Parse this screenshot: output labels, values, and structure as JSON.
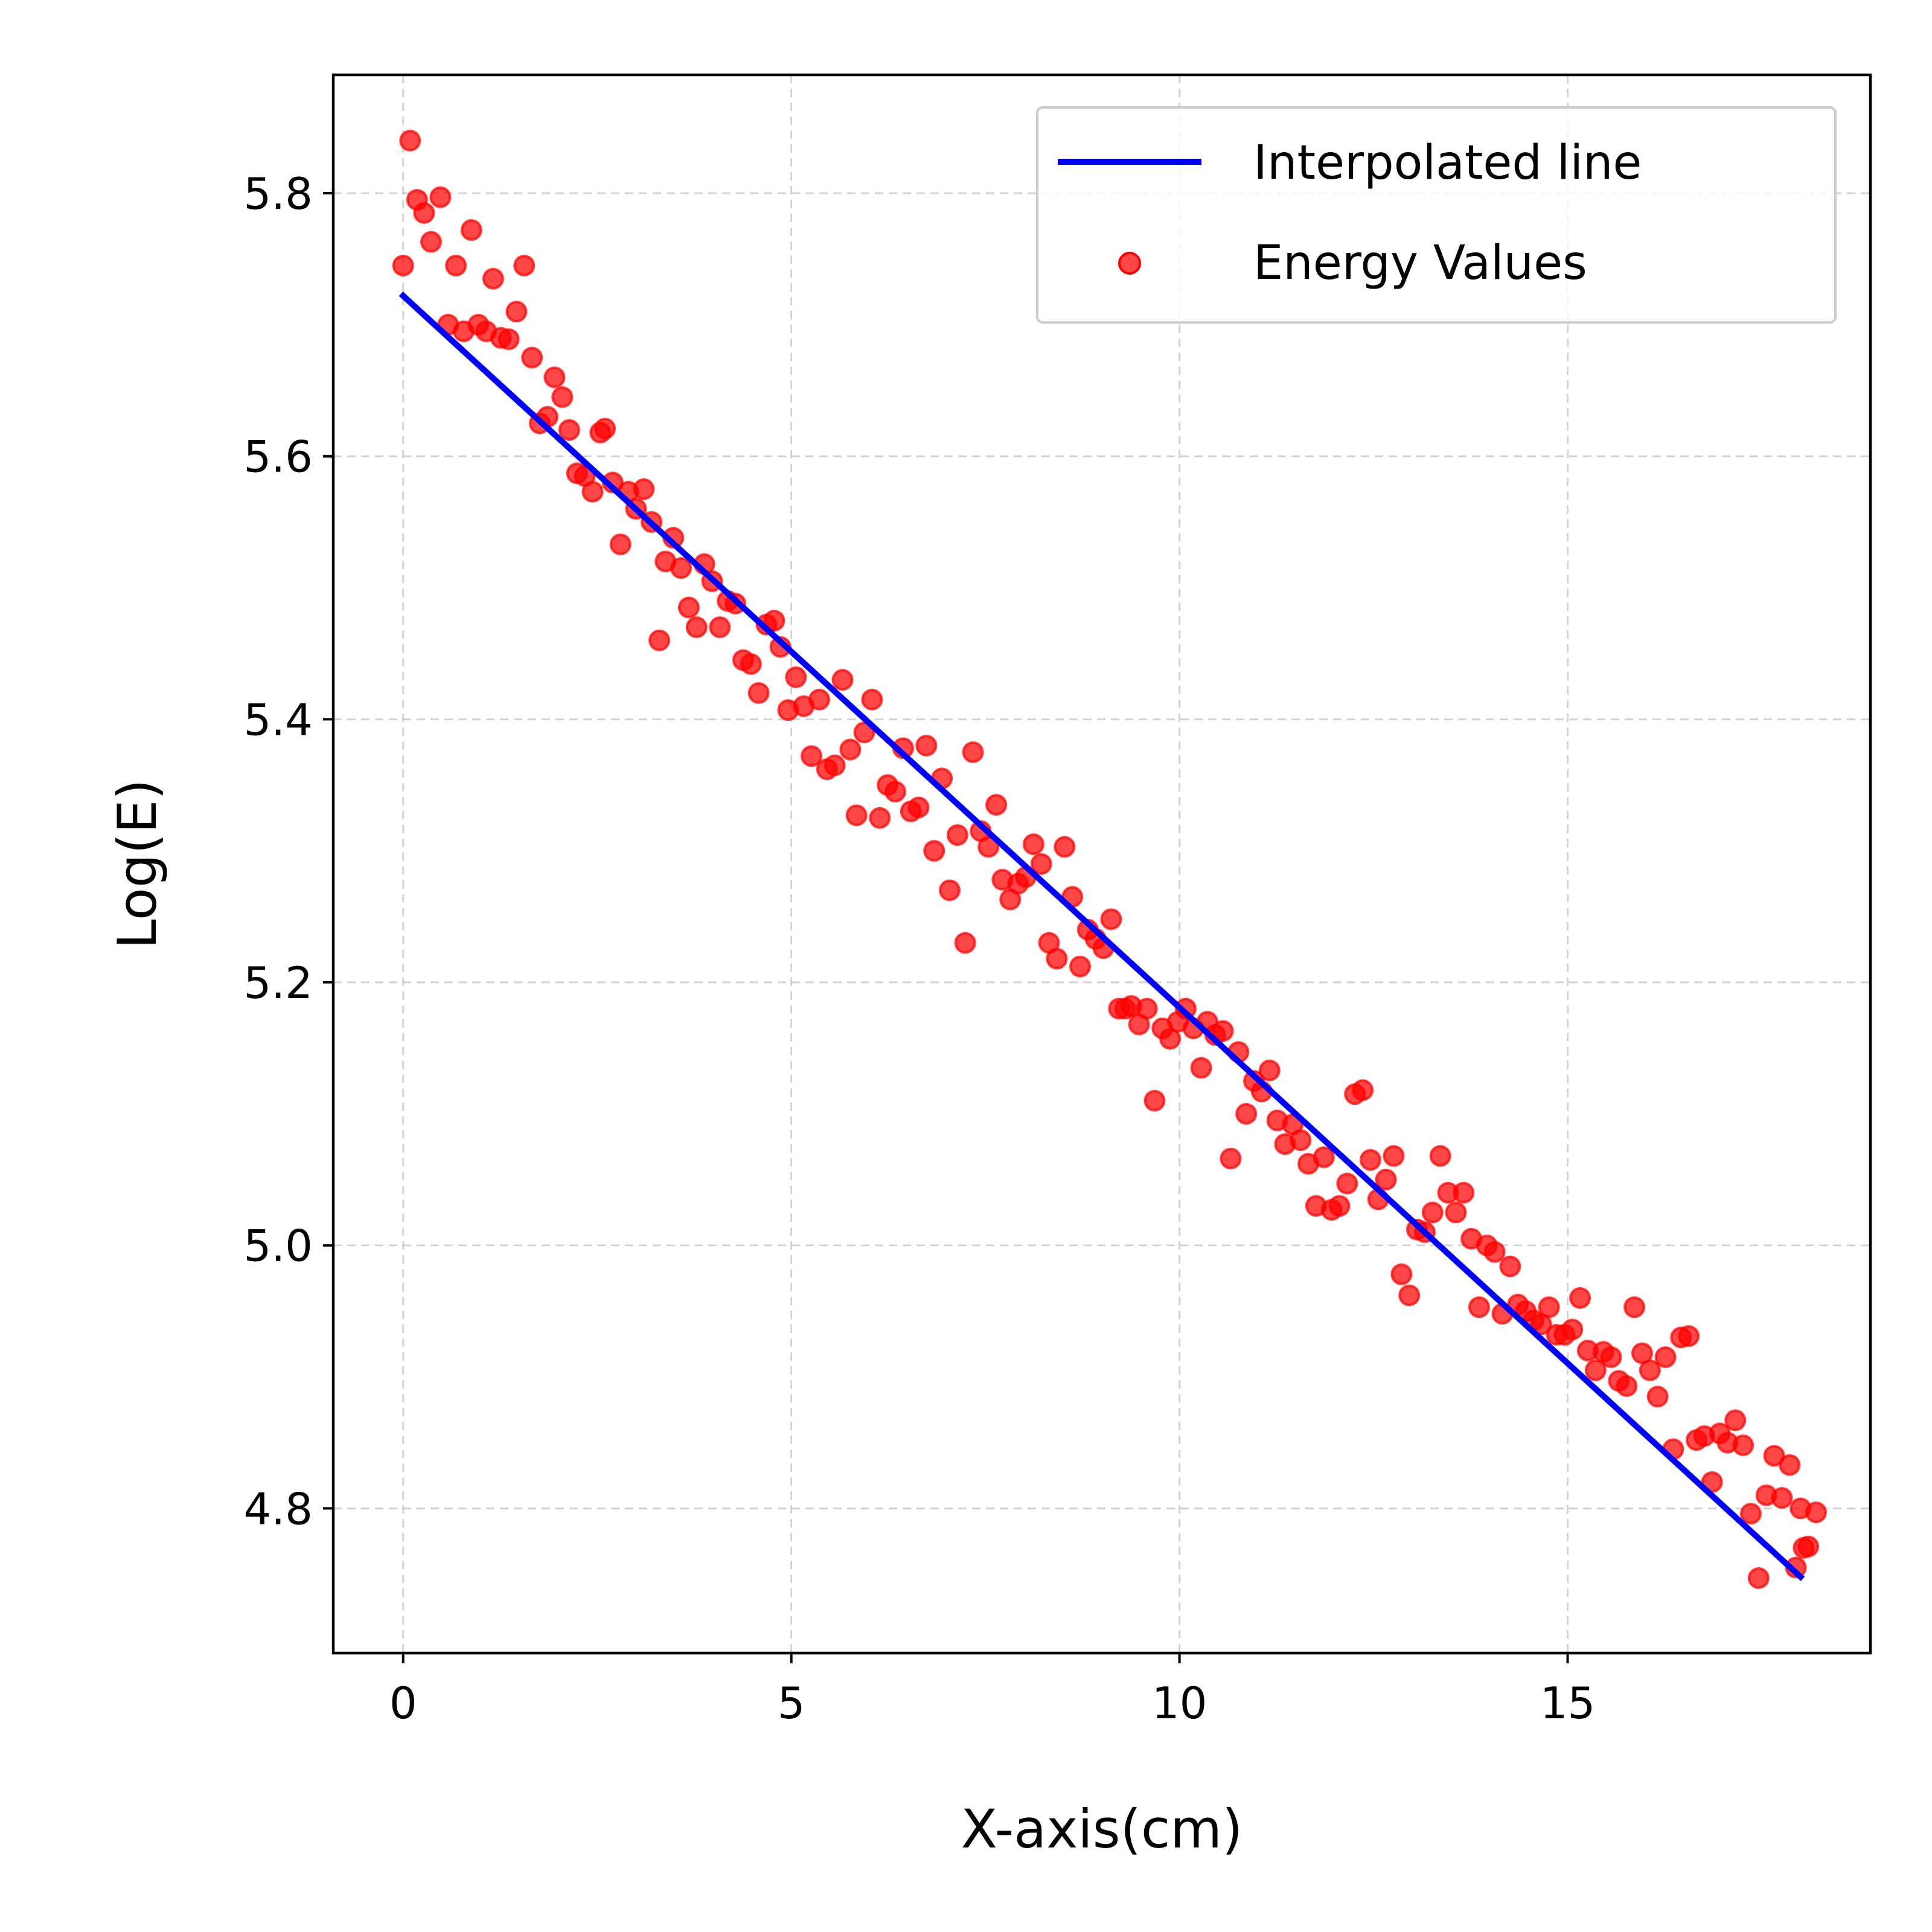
{
  "chart_data": {
    "type": "scatter+line",
    "title": "",
    "xlabel": "X-axis(cm)",
    "ylabel": "Log(E)",
    "xlim": [
      -0.9,
      18.9
    ],
    "ylim": [
      4.69,
      5.89
    ],
    "xticks": [
      0,
      5,
      10,
      15
    ],
    "yticks": [
      4.8,
      5.0,
      5.2,
      5.4,
      5.6,
      5.8
    ],
    "xtick_labels": [
      "0",
      "5",
      "10",
      "15"
    ],
    "ytick_labels": [
      "4.8",
      "5.0",
      "5.2",
      "5.4",
      "5.6",
      "5.8"
    ],
    "grid": true,
    "legend_position": "top-right",
    "colors": {
      "line": "#0000ff",
      "points": "#ff0000",
      "axes": "#000000"
    },
    "series": [
      {
        "name": "Interpolated line",
        "kind": "line",
        "x": [
          0,
          18
        ],
        "y": [
          5.722,
          4.748
        ]
      },
      {
        "name": "Energy Values",
        "kind": "scatter",
        "points": [
          [
            0.0,
            5.745
          ],
          [
            0.09,
            5.84
          ],
          [
            0.18,
            5.795
          ],
          [
            0.27,
            5.785
          ],
          [
            0.36,
            5.763
          ],
          [
            0.48,
            5.797
          ],
          [
            0.58,
            5.7
          ],
          [
            0.68,
            5.745
          ],
          [
            0.78,
            5.695
          ],
          [
            0.88,
            5.772
          ],
          [
            0.97,
            5.7
          ],
          [
            1.07,
            5.695
          ],
          [
            1.16,
            5.735
          ],
          [
            1.26,
            5.69
          ],
          [
            1.36,
            5.689
          ],
          [
            1.46,
            5.71
          ],
          [
            1.56,
            5.745
          ],
          [
            1.66,
            5.675
          ],
          [
            1.76,
            5.625
          ],
          [
            1.86,
            5.63
          ],
          [
            1.95,
            5.66
          ],
          [
            2.05,
            5.645
          ],
          [
            2.14,
            5.62
          ],
          [
            2.24,
            5.587
          ],
          [
            2.34,
            5.585
          ],
          [
            2.44,
            5.573
          ],
          [
            2.54,
            5.618
          ],
          [
            2.6,
            5.621
          ],
          [
            2.7,
            5.58
          ],
          [
            2.8,
            5.533
          ],
          [
            2.9,
            5.573
          ],
          [
            3.0,
            5.56
          ],
          [
            3.1,
            5.575
          ],
          [
            3.2,
            5.55
          ],
          [
            3.3,
            5.46
          ],
          [
            3.38,
            5.52
          ],
          [
            3.48,
            5.538
          ],
          [
            3.58,
            5.515
          ],
          [
            3.68,
            5.485
          ],
          [
            3.78,
            5.47
          ],
          [
            3.88,
            5.518
          ],
          [
            3.98,
            5.505
          ],
          [
            4.08,
            5.47
          ],
          [
            4.18,
            5.49
          ],
          [
            4.28,
            5.488
          ],
          [
            4.38,
            5.445
          ],
          [
            4.48,
            5.442
          ],
          [
            4.58,
            5.42
          ],
          [
            4.68,
            5.472
          ],
          [
            4.78,
            5.475
          ],
          [
            4.86,
            5.455
          ],
          [
            4.96,
            5.407
          ],
          [
            5.06,
            5.432
          ],
          [
            5.16,
            5.41
          ],
          [
            5.26,
            5.372
          ],
          [
            5.36,
            5.415
          ],
          [
            5.46,
            5.362
          ],
          [
            5.56,
            5.365
          ],
          [
            5.66,
            5.43
          ],
          [
            5.76,
            5.377
          ],
          [
            5.84,
            5.327
          ],
          [
            5.94,
            5.39
          ],
          [
            6.04,
            5.415
          ],
          [
            6.14,
            5.325
          ],
          [
            6.24,
            5.35
          ],
          [
            6.34,
            5.345
          ],
          [
            6.44,
            5.378
          ],
          [
            6.54,
            5.33
          ],
          [
            6.64,
            5.333
          ],
          [
            6.74,
            5.38
          ],
          [
            6.84,
            5.3
          ],
          [
            6.94,
            5.355
          ],
          [
            7.04,
            5.27
          ],
          [
            7.14,
            5.312
          ],
          [
            7.24,
            5.23
          ],
          [
            7.34,
            5.375
          ],
          [
            7.44,
            5.315
          ],
          [
            7.54,
            5.303
          ],
          [
            7.64,
            5.335
          ],
          [
            7.72,
            5.278
          ],
          [
            7.82,
            5.263
          ],
          [
            7.92,
            5.275
          ],
          [
            8.02,
            5.28
          ],
          [
            8.12,
            5.305
          ],
          [
            8.22,
            5.29
          ],
          [
            8.32,
            5.23
          ],
          [
            8.42,
            5.218
          ],
          [
            8.52,
            5.303
          ],
          [
            8.62,
            5.265
          ],
          [
            8.72,
            5.212
          ],
          [
            8.82,
            5.24
          ],
          [
            8.92,
            5.233
          ],
          [
            9.02,
            5.226
          ],
          [
            9.12,
            5.248
          ],
          [
            9.22,
            5.18
          ],
          [
            9.3,
            5.18
          ],
          [
            9.38,
            5.182
          ],
          [
            9.48,
            5.168
          ],
          [
            9.58,
            5.18
          ],
          [
            9.68,
            5.11
          ],
          [
            9.78,
            5.165
          ],
          [
            9.88,
            5.157
          ],
          [
            9.98,
            5.17
          ],
          [
            10.08,
            5.18
          ],
          [
            10.18,
            5.165
          ],
          [
            10.28,
            5.135
          ],
          [
            10.36,
            5.17
          ],
          [
            10.46,
            5.16
          ],
          [
            10.56,
            5.163
          ],
          [
            10.66,
            5.066
          ],
          [
            10.76,
            5.147
          ],
          [
            10.86,
            5.1
          ],
          [
            10.96,
            5.125
          ],
          [
            11.06,
            5.117
          ],
          [
            11.16,
            5.133
          ],
          [
            11.26,
            5.095
          ],
          [
            11.36,
            5.077
          ],
          [
            11.46,
            5.092
          ],
          [
            11.56,
            5.08
          ],
          [
            11.66,
            5.062
          ],
          [
            11.76,
            5.03
          ],
          [
            11.86,
            5.067
          ],
          [
            11.96,
            5.027
          ],
          [
            12.06,
            5.03
          ],
          [
            12.16,
            5.047
          ],
          [
            12.26,
            5.115
          ],
          [
            12.36,
            5.118
          ],
          [
            12.46,
            5.065
          ],
          [
            12.56,
            5.035
          ],
          [
            12.66,
            5.05
          ],
          [
            12.76,
            5.068
          ],
          [
            12.86,
            4.978
          ],
          [
            12.96,
            4.962
          ],
          [
            13.06,
            5.012
          ],
          [
            13.16,
            5.01
          ],
          [
            13.26,
            5.025
          ],
          [
            13.36,
            5.068
          ],
          [
            13.46,
            5.04
          ],
          [
            13.56,
            5.025
          ],
          [
            13.66,
            5.04
          ],
          [
            13.76,
            5.005
          ],
          [
            13.86,
            4.953
          ],
          [
            13.96,
            5.0
          ],
          [
            14.06,
            4.995
          ],
          [
            14.16,
            4.948
          ],
          [
            14.26,
            4.984
          ],
          [
            14.36,
            4.955
          ],
          [
            14.46,
            4.95
          ],
          [
            14.56,
            4.943
          ],
          [
            14.66,
            4.94
          ],
          [
            14.76,
            4.953
          ],
          [
            14.86,
            4.932
          ],
          [
            14.96,
            4.932
          ],
          [
            15.06,
            4.936
          ],
          [
            15.16,
            4.96
          ],
          [
            15.26,
            4.92
          ],
          [
            15.36,
            4.905
          ],
          [
            15.46,
            4.919
          ],
          [
            15.56,
            4.915
          ],
          [
            15.66,
            4.897
          ],
          [
            15.76,
            4.893
          ],
          [
            15.86,
            4.953
          ],
          [
            15.96,
            4.918
          ],
          [
            16.06,
            4.905
          ],
          [
            16.16,
            4.885
          ],
          [
            16.26,
            4.915
          ],
          [
            16.36,
            4.845
          ],
          [
            16.46,
            4.93
          ],
          [
            16.56,
            4.931
          ],
          [
            16.66,
            4.852
          ],
          [
            16.76,
            4.855
          ],
          [
            16.86,
            4.82
          ],
          [
            16.96,
            4.857
          ],
          [
            17.06,
            4.85
          ],
          [
            17.16,
            4.867
          ],
          [
            17.26,
            4.848
          ],
          [
            17.36,
            4.796
          ],
          [
            17.46,
            4.747
          ],
          [
            17.56,
            4.81
          ],
          [
            17.66,
            4.84
          ],
          [
            17.76,
            4.808
          ],
          [
            17.86,
            4.833
          ],
          [
            17.94,
            4.755
          ],
          [
            18.0,
            4.8
          ],
          [
            18.04,
            4.77
          ],
          [
            18.1,
            4.771
          ],
          [
            18.2,
            4.797
          ]
        ]
      }
    ]
  }
}
